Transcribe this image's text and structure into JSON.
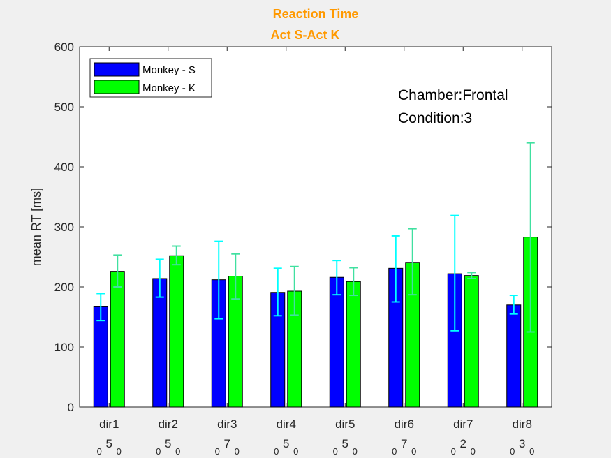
{
  "chart_data": {
    "type": "bar",
    "title": "Reaction Time",
    "subtitle": "Act S-Act K",
    "title_color": "#FF9900",
    "ylabel": "mean RT [ms]",
    "xlabel": "",
    "ylim": [
      0,
      600
    ],
    "yticks": [
      0,
      100,
      200,
      300,
      400,
      500,
      600
    ],
    "grid": false,
    "legend_placement": "top-left",
    "categories": [
      "dir1",
      "dir2",
      "dir3",
      "dir4",
      "dir5",
      "dir6",
      "dir7",
      "dir8"
    ],
    "counts": [
      {
        "left": "0",
        "mid": "5",
        "right": "0"
      },
      {
        "left": "0",
        "mid": "5",
        "right": "0"
      },
      {
        "left": "0",
        "mid": "7",
        "right": "0"
      },
      {
        "left": "0",
        "mid": "5",
        "right": "0"
      },
      {
        "left": "0",
        "mid": "5",
        "right": "0"
      },
      {
        "left": "0",
        "mid": "7",
        "right": "0"
      },
      {
        "left": "0",
        "mid": "2",
        "right": "0"
      },
      {
        "left": "0",
        "mid": "3",
        "right": "0"
      }
    ],
    "series": [
      {
        "name": "Monkey - S",
        "color": "#0000FF",
        "errorbar_color": "#00FFFF",
        "values": [
          167,
          214,
          212,
          191,
          216,
          231,
          222,
          170
        ],
        "err_low": [
          144,
          183,
          147,
          152,
          187,
          175,
          127,
          155
        ],
        "err_high": [
          189,
          246,
          276,
          231,
          244,
          285,
          319,
          186
        ]
      },
      {
        "name": "Monkey - K",
        "color": "#00FF00",
        "errorbar_color": "#40E0A0",
        "values": [
          226,
          252,
          218,
          193,
          209,
          241,
          219,
          283
        ],
        "err_low": [
          200,
          237,
          180,
          153,
          186,
          187,
          214,
          125
        ],
        "err_high": [
          253,
          268,
          255,
          234,
          232,
          297,
          224,
          440
        ]
      }
    ],
    "annotations": [
      "Chamber:Frontal",
      "Condition:3"
    ]
  }
}
